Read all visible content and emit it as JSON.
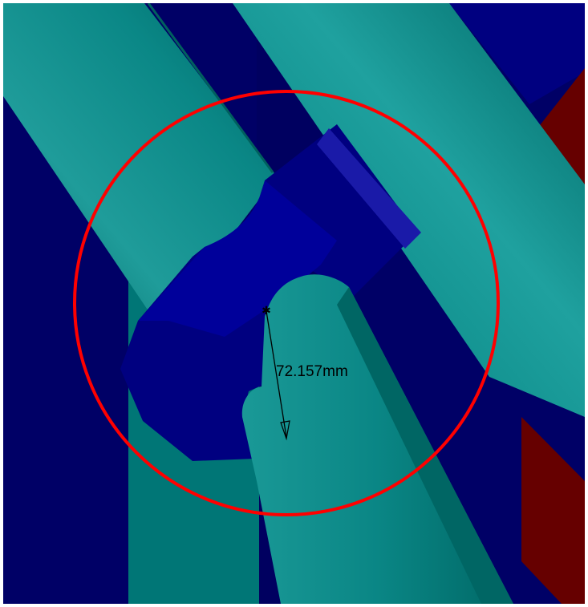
{
  "viewport": {
    "background_color": "#000066",
    "colors": {
      "teal_pipe": "#008080",
      "teal_pipe_light": "#1f9a98",
      "teal_pipe_dark": "#006a68",
      "navy_plane": "#000066",
      "navy_mid": "#000080",
      "navy_light": "#0a0a99",
      "dark_red": "#660000",
      "selection_circle": "#ff0000",
      "dimension_line": "#000000"
    }
  },
  "measurement": {
    "value": "72.157mm",
    "type": "radius"
  },
  "selection": {
    "shape": "circle",
    "color": "#ff0000"
  }
}
